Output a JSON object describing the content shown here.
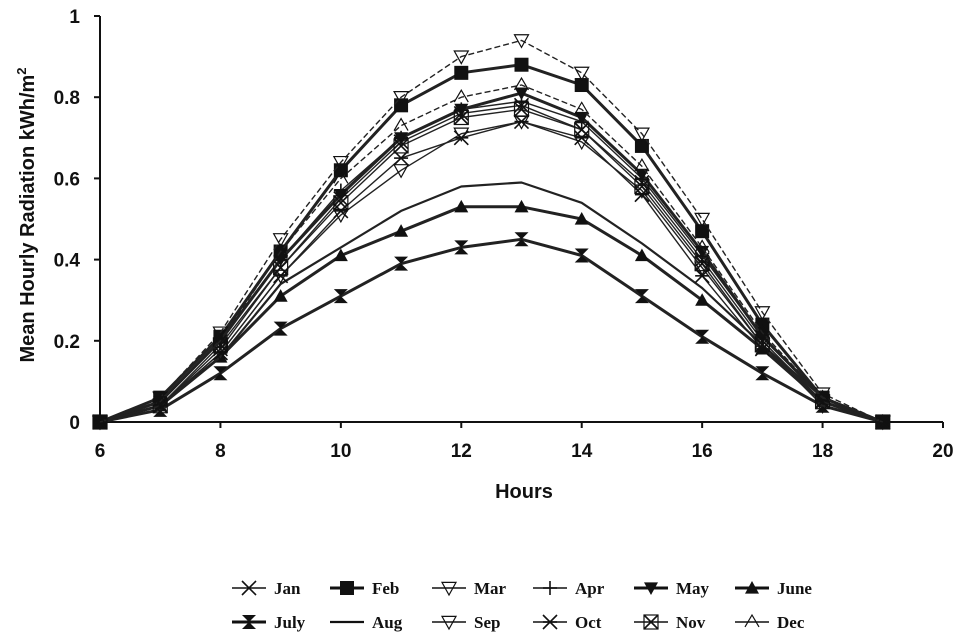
{
  "chart_data": {
    "type": "line",
    "xlabel": "Hours",
    "ylabel": "Mean Hourly Radiation kWh/m",
    "ylabel_superscript": "2",
    "xlim": [
      6,
      20
    ],
    "ylim": [
      0,
      1
    ],
    "x_ticks": [
      "6",
      "8",
      "10",
      "12",
      "14",
      "16",
      "18",
      "20"
    ],
    "y_ticks": [
      "0",
      "0.2",
      "0.4",
      "0.6",
      "0.8",
      "1"
    ],
    "grid": false,
    "legend_position": "bottom",
    "x": [
      6,
      7,
      8,
      9,
      10,
      11,
      12,
      13,
      14,
      15,
      16,
      17,
      18,
      19
    ],
    "series": [
      {
        "name": "Jan",
        "marker": "x-open",
        "values": [
          0,
          0.04,
          0.18,
          0.38,
          0.55,
          0.69,
          0.76,
          0.78,
          0.72,
          0.59,
          0.4,
          0.2,
          0.05,
          0
        ]
      },
      {
        "name": "Feb",
        "marker": "square-filled",
        "values": [
          0,
          0.06,
          0.21,
          0.42,
          0.62,
          0.78,
          0.86,
          0.88,
          0.83,
          0.68,
          0.47,
          0.24,
          0.06,
          0
        ]
      },
      {
        "name": "Mar",
        "marker": "tri-down-open",
        "values": [
          0,
          0.06,
          0.22,
          0.45,
          0.64,
          0.8,
          0.9,
          0.94,
          0.86,
          0.71,
          0.5,
          0.27,
          0.07,
          0
        ]
      },
      {
        "name": "Apr",
        "marker": "plus",
        "values": [
          0,
          0.05,
          0.2,
          0.4,
          0.57,
          0.7,
          0.77,
          0.79,
          0.74,
          0.6,
          0.41,
          0.21,
          0.06,
          0
        ]
      },
      {
        "name": "May",
        "marker": "tri-down-filled",
        "values": [
          0,
          0.05,
          0.2,
          0.4,
          0.56,
          0.7,
          0.77,
          0.81,
          0.75,
          0.61,
          0.42,
          0.21,
          0.06,
          0
        ]
      },
      {
        "name": "June",
        "marker": "tri-up-filled",
        "values": [
          0,
          0.04,
          0.16,
          0.31,
          0.41,
          0.47,
          0.53,
          0.53,
          0.5,
          0.41,
          0.3,
          0.18,
          0.05,
          0
        ]
      },
      {
        "name": "July",
        "marker": "bowtie-filled",
        "values": [
          0,
          0.03,
          0.12,
          0.23,
          0.31,
          0.39,
          0.43,
          0.45,
          0.41,
          0.31,
          0.21,
          0.12,
          0.04,
          0
        ]
      },
      {
        "name": "Aug",
        "marker": "none",
        "values": [
          0,
          0.04,
          0.16,
          0.34,
          0.43,
          0.52,
          0.58,
          0.59,
          0.54,
          0.44,
          0.33,
          0.19,
          0.06,
          0
        ]
      },
      {
        "name": "Sep",
        "marker": "tri-down-open",
        "values": [
          0,
          0.04,
          0.17,
          0.36,
          0.51,
          0.62,
          0.71,
          0.74,
          0.69,
          0.57,
          0.38,
          0.19,
          0.04,
          0
        ]
      },
      {
        "name": "Oct",
        "marker": "x-bar",
        "values": [
          0,
          0.04,
          0.17,
          0.36,
          0.52,
          0.65,
          0.7,
          0.74,
          0.7,
          0.56,
          0.36,
          0.18,
          0.05,
          0
        ]
      },
      {
        "name": "Nov",
        "marker": "x-box",
        "values": [
          0,
          0.04,
          0.19,
          0.38,
          0.54,
          0.68,
          0.75,
          0.77,
          0.72,
          0.58,
          0.39,
          0.19,
          0.05,
          0
        ]
      },
      {
        "name": "Dec",
        "marker": "caret-open",
        "values": [
          0,
          0.05,
          0.2,
          0.42,
          0.6,
          0.73,
          0.8,
          0.83,
          0.77,
          0.63,
          0.43,
          0.22,
          0.06,
          0
        ]
      }
    ]
  }
}
